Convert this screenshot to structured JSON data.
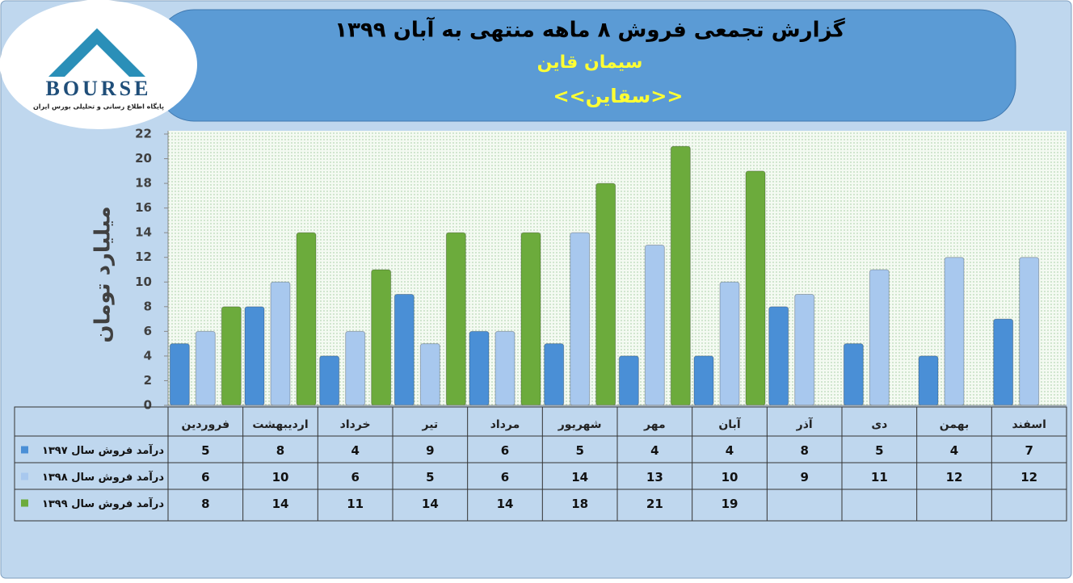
{
  "chart_data": {
    "type": "bar",
    "title": "گزارش تجمعی فروش ۸ ماهه منتهی به آبان ۱۳۹۹",
    "subtitle": "سیمان قاین",
    "symbol": "<<سقاین>>",
    "y_label": "میلیارد تومان",
    "logo": {
      "name": "BOURSE",
      "tagline": "پایگاه اطلاع رسانی و تحلیلی بورس ایران"
    },
    "categories": [
      "فروردین",
      "اردیبهشت",
      "خرداد",
      "تیر",
      "مرداد",
      "شهریور",
      "مهر",
      "آبان",
      "آذر",
      "دی",
      "بهمن",
      "اسفند"
    ],
    "series": [
      {
        "name": "درآمد فروش سال ۱۳۹۷",
        "color": "#4a8fd6",
        "values": [
          5,
          8,
          4,
          9,
          6,
          5,
          4,
          4,
          8,
          5,
          4,
          7
        ]
      },
      {
        "name": "درآمد فروش سال ۱۳۹۸",
        "color": "#a8c8ee",
        "values": [
          6,
          10,
          6,
          5,
          6,
          14,
          13,
          10,
          9,
          11,
          12,
          12
        ]
      },
      {
        "name": "درآمد فروش سال ۱۳۹۹",
        "color": "#6cab3c",
        "values": [
          8,
          14,
          11,
          14,
          14,
          18,
          21,
          19,
          null,
          null,
          null,
          null
        ]
      }
    ],
    "ylim": [
      0,
      22
    ],
    "yticks": [
      0,
      2,
      4,
      6,
      8,
      10,
      12,
      14,
      16,
      18,
      20,
      22
    ]
  }
}
